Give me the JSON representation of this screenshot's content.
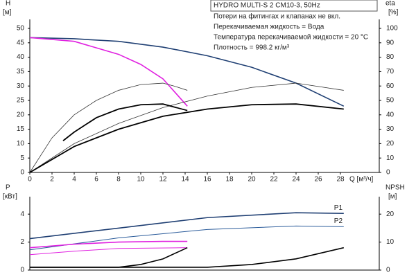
{
  "chart_data": [
    {
      "type": "line",
      "title": "HYDRO MULTI-S 2 CM10-3, 50Hz",
      "notes": [
        "Потери на фитингах и клапанах не вкл.",
        "Перекачиваемая жидкость = Вода",
        "Температура перекачиваемой жидкости = 20 °C",
        "Плотность = 998.2 кг/м³"
      ],
      "y_label": "H",
      "y_unit": "[м]",
      "y2_label": "eta",
      "y2_unit": "[%]",
      "x_label": "Q [м³/ч]",
      "xlim": [
        0,
        31.5
      ],
      "xticks": [
        0,
        2,
        4,
        6,
        8,
        10,
        12,
        14,
        16,
        18,
        20,
        22,
        24,
        26,
        28
      ],
      "ylim": [
        0,
        50
      ],
      "yticks": [
        0,
        5,
        10,
        15,
        20,
        25,
        30,
        35,
        40,
        45,
        50
      ],
      "y2lim": [
        0,
        100
      ],
      "y2ticks": [
        0,
        10,
        20,
        30,
        40,
        50,
        60,
        70,
        80,
        90,
        100
      ],
      "series": [
        {
          "color": "#1f3f73",
          "width": 1.6,
          "x": [
            0,
            4,
            8,
            12,
            16,
            20,
            24,
            28.3
          ],
          "values": [
            46.8,
            46.4,
            45.5,
            43.5,
            40.5,
            36.5,
            31,
            23
          ]
        },
        {
          "color": "#e020e0",
          "width": 1.6,
          "x": [
            0,
            4,
            8,
            10,
            12,
            14.2
          ],
          "values": [
            46.8,
            45.5,
            41,
            37.5,
            32.5,
            23
          ]
        },
        {
          "color": "#333333",
          "width": 0.8,
          "axis": "y2",
          "x": [
            0,
            2,
            4,
            6,
            8,
            10,
            12,
            13,
            14.2
          ],
          "values": [
            0,
            24,
            40,
            50,
            57,
            61,
            62,
            60,
            57
          ]
        },
        {
          "color": "#333333",
          "width": 0.8,
          "axis": "y2",
          "x": [
            0,
            4,
            8,
            12,
            16,
            20,
            24,
            28.3
          ],
          "values": [
            0,
            20,
            34,
            45,
            53,
            59,
            62,
            57
          ]
        },
        {
          "color": "#000000",
          "width": 1.8,
          "axis": "y2",
          "x": [
            3,
            4,
            6,
            8,
            10,
            12,
            14.2
          ],
          "values": [
            22,
            28,
            38,
            44,
            47,
            47.5,
            43
          ]
        },
        {
          "color": "#000000",
          "width": 1.8,
          "axis": "y2",
          "x": [
            0,
            4,
            8,
            12,
            16,
            20,
            24,
            28.3
          ],
          "values": [
            0,
            18,
            30,
            39,
            44,
            47,
            47.5,
            44
          ]
        }
      ]
    },
    {
      "type": "line",
      "y_label": "P",
      "y_unit": "[кВт]",
      "y2_label": "NPSH",
      "y2_unit": "[м]",
      "xlim": [
        0,
        31.5
      ],
      "ylim": [
        0,
        5
      ],
      "yticks": [
        0,
        2,
        4
      ],
      "y2lim": [
        0,
        25
      ],
      "y2ticks": [
        0,
        10,
        20
      ],
      "series": [
        {
          "name": "P1",
          "color": "#1f3f73",
          "width": 1.6,
          "x": [
            0,
            8,
            16,
            24,
            28.3
          ],
          "values": [
            2.25,
            3.0,
            3.75,
            4.1,
            4.05
          ]
        },
        {
          "name": "P2",
          "color": "#2a5b9a",
          "width": 1.0,
          "x": [
            0,
            8,
            16,
            24,
            28.3
          ],
          "values": [
            1.45,
            2.3,
            2.9,
            3.15,
            3.1
          ]
        },
        {
          "color": "#e020e0",
          "width": 1.6,
          "x": [
            0,
            4,
            8,
            12,
            14.2
          ],
          "values": [
            1.6,
            1.85,
            2.0,
            2.05,
            2.05
          ]
        },
        {
          "color": "#e020e0",
          "width": 1.0,
          "x": [
            0,
            4,
            8,
            14.2
          ],
          "values": [
            1.1,
            1.35,
            1.55,
            1.6
          ]
        },
        {
          "color": "#000000",
          "width": 1.6,
          "axis": "y2",
          "x": [
            0,
            8,
            10,
            12,
            14.2
          ],
          "values": [
            1,
            1,
            2,
            4,
            8
          ]
        },
        {
          "color": "#000000",
          "width": 1.6,
          "axis": "y2",
          "x": [
            0,
            16,
            20,
            24,
            28.3
          ],
          "values": [
            1,
            1,
            2,
            4,
            8
          ]
        }
      ]
    }
  ]
}
